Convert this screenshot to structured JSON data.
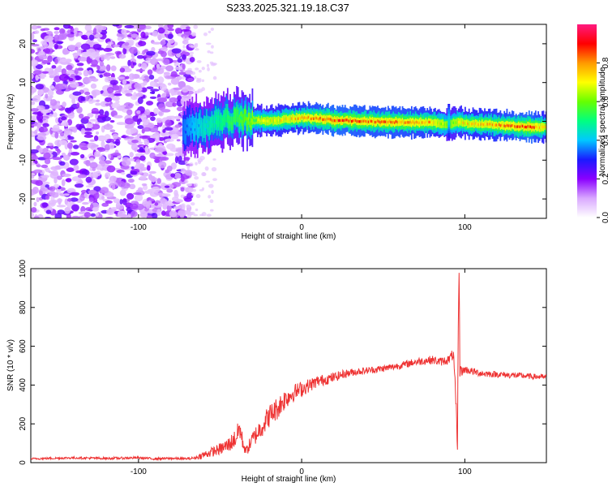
{
  "title": "S233.2025.321.19.18.C37",
  "chart_data": [
    {
      "type": "heatmap",
      "id": "spectrogram",
      "xlabel": "Height of straight line (km)",
      "ylabel": "Frequency (Hz)",
      "xlim": [
        -166,
        150
      ],
      "ylim": [
        -25,
        25
      ],
      "x_ticks": [
        -100,
        0,
        100
      ],
      "y_ticks": [
        -20,
        -10,
        0,
        10,
        20
      ],
      "colorbar": {
        "label": "Normalized spectral amplitude",
        "range": [
          0,
          1
        ],
        "ticks": [
          "0.0",
          "0.2",
          "0.4",
          "0.6",
          "0.8"
        ],
        "tick_values": [
          0.0,
          0.2,
          0.4,
          0.6,
          0.8
        ],
        "colors": [
          "#ffffff",
          "#d9a8ff",
          "#8a00ff",
          "#1a1aff",
          "#00c8ff",
          "#00ff80",
          "#66ff00",
          "#ffff00",
          "#ff9900",
          "#ff0000",
          "#ff1a80"
        ]
      },
      "noise_region": {
        "x": [
          -166,
          -73
        ],
        "y": [
          -25,
          25
        ],
        "amplitude": 0.2
      },
      "ridge": {
        "x": [
          -73,
          -60,
          -50,
          -40,
          -35,
          -20,
          -10,
          0,
          20,
          40,
          60,
          80,
          90,
          95,
          100,
          120,
          140,
          150
        ],
        "freq": [
          -2,
          -1,
          0,
          1,
          0.5,
          0,
          0.5,
          1,
          0.3,
          0,
          -0.2,
          -0.3,
          -1,
          0,
          -0.5,
          -1,
          -1.5,
          -1.5
        ],
        "amplitude": [
          0.35,
          0.45,
          0.5,
          0.55,
          0.6,
          0.7,
          0.75,
          0.8,
          0.9,
          0.85,
          0.85,
          0.8,
          0.6,
          0.7,
          0.75,
          0.8,
          0.9,
          0.7
        ]
      }
    },
    {
      "type": "line",
      "id": "snr",
      "xlabel": "Height of straight line (km)",
      "ylabel": "SNR (10 * v/v)",
      "xlim": [
        -166,
        150
      ],
      "ylim": [
        0,
        1000
      ],
      "x_ticks": [
        -100,
        0,
        100
      ],
      "y_ticks": [
        0,
        200,
        400,
        600,
        800,
        1000
      ],
      "color": "#ee3333",
      "series": [
        {
          "name": "SNR",
          "x": [
            -166,
            -140,
            -120,
            -100,
            -90,
            -80,
            -70,
            -65,
            -60,
            -50,
            -45,
            -40,
            -38,
            -36,
            -34,
            -30,
            -25,
            -20,
            -15,
            -10,
            -5,
            0,
            5,
            10,
            15,
            20,
            25,
            30,
            40,
            50,
            60,
            70,
            80,
            85,
            90,
            93,
            94,
            95,
            95.5,
            96,
            96.5,
            97,
            98,
            100,
            110,
            120,
            130,
            140,
            150
          ],
          "y": [
            20,
            25,
            22,
            25,
            20,
            22,
            20,
            25,
            40,
            70,
            90,
            130,
            180,
            100,
            60,
            120,
            180,
            240,
            280,
            330,
            360,
            380,
            400,
            420,
            430,
            440,
            455,
            465,
            475,
            485,
            500,
            520,
            530,
            520,
            530,
            560,
            400,
            200,
            60,
            750,
            980,
            500,
            470,
            480,
            460,
            455,
            450,
            445,
            440
          ],
          "noise": [
            5,
            6,
            6,
            6,
            6,
            6,
            6,
            8,
            20,
            30,
            40,
            50,
            60,
            40,
            25,
            45,
            55,
            60,
            60,
            55,
            45,
            40,
            35,
            30,
            28,
            25,
            22,
            20,
            18,
            18,
            18,
            20,
            22,
            22,
            24,
            30,
            40,
            60,
            20,
            80,
            40,
            60,
            25,
            20,
            18,
            16,
            16,
            15,
            14
          ]
        }
      ]
    }
  ]
}
